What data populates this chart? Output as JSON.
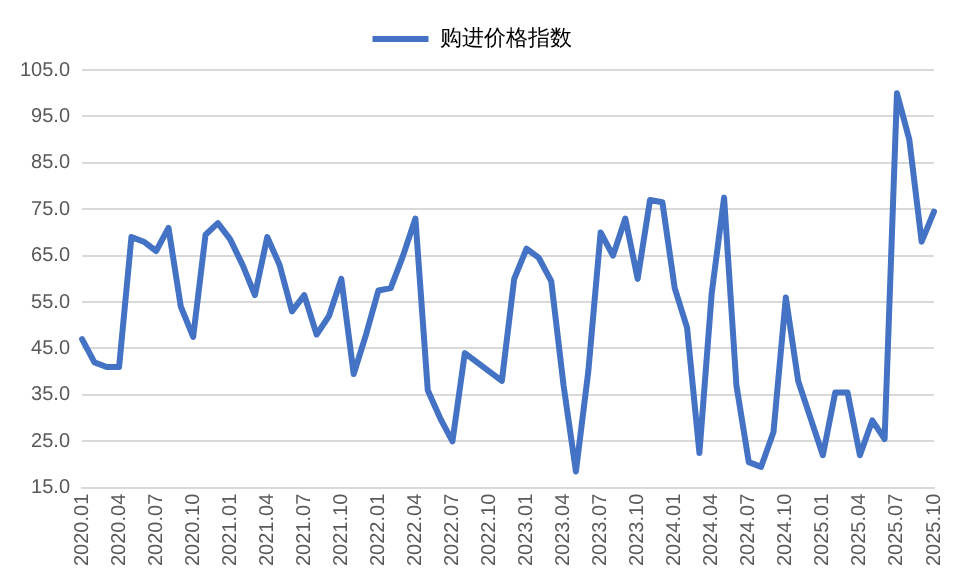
{
  "chart_data": {
    "type": "line",
    "categories": [
      "2020.01",
      null,
      null,
      "2020.04",
      null,
      null,
      "2020.07",
      null,
      null,
      "2020.10",
      null,
      null,
      "2021.01",
      null,
      null,
      "2021.04",
      null,
      null,
      "2021.07",
      null,
      null,
      "2021.10",
      null,
      null,
      "2022.01",
      null,
      null,
      "2022.04",
      null,
      null,
      "2022.07",
      null,
      null,
      "2022.10",
      null,
      null,
      "2023.01",
      null,
      null,
      "2023.04",
      null,
      null,
      "2023.07",
      null,
      null,
      "2023.10",
      null,
      null,
      "2024.01",
      null,
      null,
      "2024.04",
      null,
      null,
      "2024.07",
      null,
      null,
      "2024.10",
      null,
      null,
      "2025.01",
      null,
      null,
      "2025.04",
      null,
      null,
      "2025.07",
      null,
      null,
      "2025.10"
    ],
    "series": [
      {
        "name": "购进价格指数",
        "color": "#4472c4",
        "values": [
          47,
          42,
          41,
          41,
          69,
          68,
          66,
          71,
          54,
          47.5,
          69.5,
          72,
          68.5,
          63,
          56.5,
          69,
          63,
          53,
          56.5,
          48,
          52,
          60,
          39.5,
          48,
          57.5,
          58,
          65,
          73,
          36,
          30,
          25,
          44,
          42,
          40,
          38,
          60,
          66.5,
          64.5,
          59.5,
          37,
          18.5,
          40,
          70,
          65,
          73,
          60,
          77,
          76.5,
          58,
          49.5,
          22.5,
          57,
          77.5,
          37,
          20.5,
          19.5,
          27,
          56,
          38,
          30,
          22,
          35.5,
          35.5,
          22,
          29.5,
          25.5,
          100,
          90,
          68,
          74.5
        ]
      }
    ],
    "ylim": [
      15,
      105
    ],
    "yticks": [
      {
        "value": 15,
        "label": "15.0"
      },
      {
        "value": 25,
        "label": "25.0"
      },
      {
        "value": 35,
        "label": "35.0"
      },
      {
        "value": 45,
        "label": "45.0"
      },
      {
        "value": 55,
        "label": "55.0"
      },
      {
        "value": 65,
        "label": "65.0"
      },
      {
        "value": 75,
        "label": "75.0"
      },
      {
        "value": 85,
        "label": "85.0"
      },
      {
        "value": 95,
        "label": "95.0"
      },
      {
        "value": 105,
        "label": "105.0"
      }
    ],
    "grid": "y",
    "legend": "top",
    "marker": "none",
    "line_style": "solid"
  }
}
